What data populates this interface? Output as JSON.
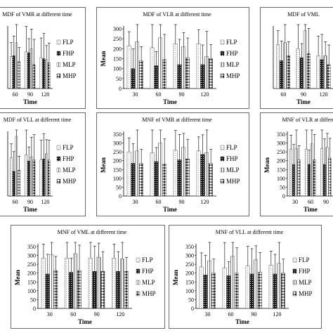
{
  "legend": [
    "FLP",
    "FHP",
    "MLP",
    "MHP"
  ],
  "xlabel": "Time",
  "ylabel": "Mean",
  "chart_data": [
    {
      "type": "bar",
      "title": "MDF of VMR at different time",
      "categories": [
        "60",
        "90",
        "120"
      ],
      "ylim": [
        0,
        300
      ],
      "yticks": [],
      "xlabel": "Time",
      "ylabel": "",
      "series": [
        {
          "name": "FLP",
          "values": [
            160,
            185,
            155
          ]
        },
        {
          "name": "FHP",
          "values": [
            165,
            180,
            150
          ]
        },
        {
          "name": "MLP",
          "values": [
            230,
            200,
            145
          ]
        },
        {
          "name": "MHP",
          "values": [
            135,
            120,
            130
          ]
        }
      ]
    },
    {
      "type": "bar",
      "title": "MDF of VLR at different time",
      "categories": [
        "30",
        "60",
        "90",
        "120"
      ],
      "ylim": [
        0,
        300
      ],
      "yticks": [
        "0",
        "50",
        "100",
        "150",
        "200",
        "250",
        "300"
      ],
      "xlabel": "Time",
      "ylabel": "Mean",
      "series": [
        {
          "name": "FLP",
          "values": [
            215,
            205,
            225,
            225
          ]
        },
        {
          "name": "FHP",
          "values": [
            100,
            115,
            120,
            120
          ]
        },
        {
          "name": "MLP",
          "values": [
            235,
            255,
            210,
            160
          ]
        },
        {
          "name": "MHP",
          "values": [
            140,
            145,
            155,
            150
          ]
        }
      ]
    },
    {
      "type": "bar",
      "title": "MDF of VML",
      "categories": [
        "60",
        "90",
        "120"
      ],
      "ylim": [
        0,
        300
      ],
      "yticks": [],
      "xlabel": "Time",
      "ylabel": "",
      "series": [
        {
          "name": "FLP",
          "values": [
            220,
            200,
            165
          ]
        },
        {
          "name": "FHP",
          "values": [
            140,
            155,
            145
          ]
        },
        {
          "name": "MLP",
          "values": [
            230,
            290,
            165
          ]
        },
        {
          "name": "MHP",
          "values": [
            165,
            175,
            120
          ]
        }
      ]
    },
    {
      "type": "bar",
      "title": "MDF of VLL at different time",
      "categories": [
        "60",
        "90",
        "120"
      ],
      "ylim": [
        0,
        300
      ],
      "yticks": [],
      "xlabel": "Time",
      "ylabel": "",
      "series": [
        {
          "name": "FLP",
          "values": [
            185,
            200,
            175
          ]
        },
        {
          "name": "FHP",
          "values": [
            120,
            170,
            180
          ]
        },
        {
          "name": "MLP",
          "values": [
            290,
            190,
            205
          ]
        },
        {
          "name": "MHP",
          "values": [
            125,
            175,
            175
          ]
        }
      ]
    },
    {
      "type": "bar",
      "title": "MNF of VMR at different time",
      "categories": [
        "30",
        "60",
        "90",
        "120"
      ],
      "ylim": [
        0,
        350
      ],
      "yticks": [
        "0",
        "50",
        "100",
        "150",
        "200",
        "250",
        "300",
        "350"
      ],
      "xlabel": "Time",
      "ylabel": "Mean",
      "series": [
        {
          "name": "FLP",
          "values": [
            250,
            245,
            260,
            255
          ]
        },
        {
          "name": "FHP",
          "values": [
            185,
            195,
            205,
            235
          ]
        },
        {
          "name": "MLP",
          "values": [
            255,
            300,
            275,
            245
          ]
        },
        {
          "name": "MHP",
          "values": [
            185,
            180,
            210,
            185
          ]
        }
      ]
    },
    {
      "type": "bar",
      "title": "MNF of VLR at different",
      "categories": [
        "30",
        "60",
        "90"
      ],
      "ylim": [
        0,
        350
      ],
      "yticks": [
        "0",
        "50",
        "100",
        "150",
        "200",
        "250",
        "300",
        "350"
      ],
      "xlabel": "Time",
      "ylabel": "Mean",
      "series": [
        {
          "name": "FLP",
          "values": [
            265,
            265,
            270
          ]
        },
        {
          "name": "FHP",
          "values": [
            180,
            180,
            180
          ]
        },
        {
          "name": "MLP",
          "values": [
            270,
            295,
            275
          ]
        },
        {
          "name": "MHP",
          "values": [
            205,
            205,
            215
          ]
        }
      ]
    },
    {
      "type": "bar",
      "title": "MNF of VML at different time",
      "categories": [
        "30",
        "60",
        "90",
        "120"
      ],
      "ylim": [
        0,
        350
      ],
      "yticks": [
        "0",
        "50",
        "100",
        "150",
        "200",
        "250",
        "300",
        "350"
      ],
      "xlabel": "Time",
      "ylabel": "Mean",
      "series": [
        {
          "name": "FLP",
          "values": [
            285,
            285,
            285,
            285
          ]
        },
        {
          "name": "FHP",
          "values": [
            195,
            205,
            210,
            210
          ]
        },
        {
          "name": "MLP",
          "values": [
            305,
            310,
            290,
            280
          ]
        },
        {
          "name": "MHP",
          "values": [
            215,
            215,
            210,
            210
          ]
        }
      ]
    },
    {
      "type": "bar",
      "title": "MNF of VLL at different time",
      "categories": [
        "30",
        "60",
        "90",
        "120"
      ],
      "ylim": [
        0,
        350
      ],
      "yticks": [
        "0",
        "50",
        "100",
        "150",
        "200",
        "250",
        "300",
        "350"
      ],
      "xlabel": "Time",
      "ylabel": "Mean",
      "series": [
        {
          "name": "FLP",
          "values": [
            235,
            230,
            240,
            245
          ]
        },
        {
          "name": "FHP",
          "values": [
            190,
            185,
            195,
            195
          ]
        },
        {
          "name": "MLP",
          "values": [
            270,
            295,
            275,
            255
          ]
        },
        {
          "name": "MHP",
          "values": [
            200,
            200,
            205,
            200
          ]
        }
      ]
    }
  ]
}
